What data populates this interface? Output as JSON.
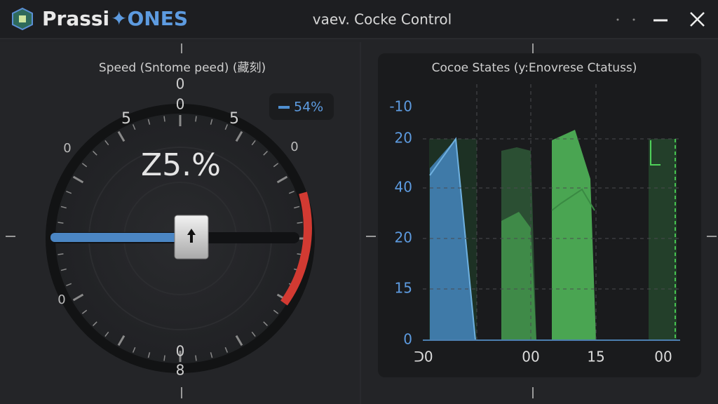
{
  "header": {
    "brand": "Prassi",
    "brand_accent": "✦ONES",
    "title": "vaev. Cocke Control"
  },
  "gauge": {
    "title": "Speed (Sntome peed) (藏刻)",
    "dial_labels": [
      "0",
      "0",
      "5",
      "5",
      "0",
      "0",
      "0",
      "0",
      "8"
    ],
    "readout": "Z5.%",
    "badge": "54%"
  },
  "chart": {
    "title": "Cocoe States (y:Enovrese Ctatuss)",
    "y_labels": [
      "-10",
      "20",
      "40",
      "20",
      "15",
      "0"
    ],
    "x_labels": [
      "ᑐ0",
      "00",
      "15",
      "00"
    ]
  }
}
